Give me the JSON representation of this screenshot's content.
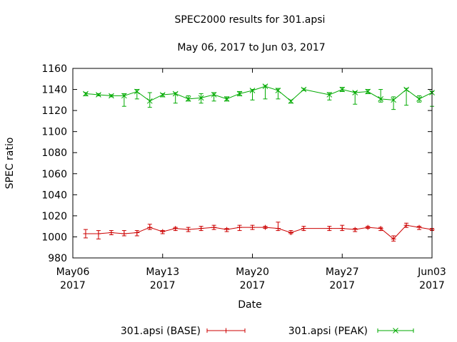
{
  "chart_data": {
    "type": "line",
    "title": "SPEC2000 results for 301.apsi",
    "subtitle": "May 06, 2017 to Jun 03, 2017",
    "xlabel": "Date",
    "ylabel": "SPEC ratio",
    "xlim": [
      "2017-05-06",
      "2017-06-03"
    ],
    "ylim": [
      980,
      1160
    ],
    "yticks": [
      980,
      1000,
      1020,
      1040,
      1060,
      1080,
      1100,
      1120,
      1140,
      1160
    ],
    "xticks": [
      {
        "date": "2017-05-06",
        "line1": "May06",
        "line2": "2017"
      },
      {
        "date": "2017-05-13",
        "line1": "May13",
        "line2": "2017"
      },
      {
        "date": "2017-05-20",
        "line1": "May20",
        "line2": "2017"
      },
      {
        "date": "2017-05-27",
        "line1": "May27",
        "line2": "2017"
      },
      {
        "date": "2017-06-03",
        "line1": "Jun03",
        "line2": "2017"
      }
    ],
    "grid": false,
    "legend": "bottom",
    "series": [
      {
        "name": "301.apsi (BASE)",
        "color": "#cc0000",
        "marker": "plus",
        "points": [
          {
            "x": "2017-05-07 00:00",
            "y": 1003,
            "lo": 999,
            "hi": 1007
          },
          {
            "x": "2017-05-08 00:00",
            "y": 1003,
            "lo": 998,
            "hi": 1006
          },
          {
            "x": "2017-05-09 00:00",
            "y": 1004,
            "lo": 1002,
            "hi": 1006
          },
          {
            "x": "2017-05-10 00:00",
            "y": 1003,
            "lo": 1001,
            "hi": 1006
          },
          {
            "x": "2017-05-11 00:00",
            "y": 1004,
            "lo": 1001,
            "hi": 1006
          },
          {
            "x": "2017-05-12 00:00",
            "y": 1009,
            "lo": 1007,
            "hi": 1012
          },
          {
            "x": "2017-05-13 00:00",
            "y": 1005,
            "lo": 1003,
            "hi": 1006
          },
          {
            "x": "2017-05-14 00:00",
            "y": 1008,
            "lo": 1006,
            "hi": 1009
          },
          {
            "x": "2017-05-15 00:00",
            "y": 1007,
            "lo": 1005,
            "hi": 1009
          },
          {
            "x": "2017-05-16 00:00",
            "y": 1008,
            "lo": 1006,
            "hi": 1010
          },
          {
            "x": "2017-05-17 00:00",
            "y": 1009,
            "lo": 1007,
            "hi": 1011
          },
          {
            "x": "2017-05-18 00:00",
            "y": 1007,
            "lo": 1005,
            "hi": 1008
          },
          {
            "x": "2017-05-19 00:00",
            "y": 1009,
            "lo": 1006,
            "hi": 1011
          },
          {
            "x": "2017-05-20 00:00",
            "y": 1009,
            "lo": 1007,
            "hi": 1011
          },
          {
            "x": "2017-05-21 00:00",
            "y": 1009,
            "lo": 1008,
            "hi": 1010
          },
          {
            "x": "2017-05-22 00:00",
            "y": 1008,
            "lo": 1006,
            "hi": 1014
          },
          {
            "x": "2017-05-23 00:00",
            "y": 1004,
            "lo": 1003,
            "hi": 1006
          },
          {
            "x": "2017-05-24 00:00",
            "y": 1008,
            "lo": 1006,
            "hi": 1010
          },
          {
            "x": "2017-05-26 00:00",
            "y": 1008,
            "lo": 1006,
            "hi": 1010
          },
          {
            "x": "2017-05-27 00:00",
            "y": 1008,
            "lo": 1006,
            "hi": 1011
          },
          {
            "x": "2017-05-28 00:00",
            "y": 1007,
            "lo": 1005,
            "hi": 1008
          },
          {
            "x": "2017-05-29 00:00",
            "y": 1009,
            "lo": 1008,
            "hi": 1010
          },
          {
            "x": "2017-05-30 00:00",
            "y": 1008,
            "lo": 1006,
            "hi": 1009
          },
          {
            "x": "2017-05-31 00:00",
            "y": 998,
            "lo": 996,
            "hi": 1001
          },
          {
            "x": "2017-06-01 00:00",
            "y": 1011,
            "lo": 1009,
            "hi": 1013
          },
          {
            "x": "2017-06-02 00:00",
            "y": 1009,
            "lo": 1007,
            "hi": 1010
          },
          {
            "x": "2017-06-03 00:00",
            "y": 1007,
            "lo": 1006,
            "hi": 1008
          }
        ]
      },
      {
        "name": "301.apsi (PEAK)",
        "color": "#00aa00",
        "marker": "cross",
        "points": [
          {
            "x": "2017-05-07 00:00",
            "y": 1136,
            "lo": 1134,
            "hi": 1137
          },
          {
            "x": "2017-05-08 00:00",
            "y": 1135,
            "lo": 1134,
            "hi": 1136
          },
          {
            "x": "2017-05-09 00:00",
            "y": 1134,
            "lo": 1133,
            "hi": 1135
          },
          {
            "x": "2017-05-10 00:00",
            "y": 1134,
            "lo": 1124,
            "hi": 1136
          },
          {
            "x": "2017-05-11 00:00",
            "y": 1138,
            "lo": 1131,
            "hi": 1140
          },
          {
            "x": "2017-05-12 00:00",
            "y": 1129,
            "lo": 1123,
            "hi": 1137
          },
          {
            "x": "2017-05-13 00:00",
            "y": 1135,
            "lo": 1133,
            "hi": 1136
          },
          {
            "x": "2017-05-14 00:00",
            "y": 1136,
            "lo": 1127,
            "hi": 1137
          },
          {
            "x": "2017-05-15 00:00",
            "y": 1131,
            "lo": 1129,
            "hi": 1134
          },
          {
            "x": "2017-05-16 00:00",
            "y": 1132,
            "lo": 1127,
            "hi": 1136
          },
          {
            "x": "2017-05-17 00:00",
            "y": 1135,
            "lo": 1129,
            "hi": 1137
          },
          {
            "x": "2017-05-18 00:00",
            "y": 1131,
            "lo": 1129,
            "hi": 1133
          },
          {
            "x": "2017-05-19 00:00",
            "y": 1136,
            "lo": 1134,
            "hi": 1138
          },
          {
            "x": "2017-05-20 00:00",
            "y": 1139,
            "lo": 1130,
            "hi": 1140
          },
          {
            "x": "2017-05-21 00:00",
            "y": 1143,
            "lo": 1131,
            "hi": 1144
          },
          {
            "x": "2017-05-22 00:00",
            "y": 1139,
            "lo": 1131,
            "hi": 1141
          },
          {
            "x": "2017-05-23 00:00",
            "y": 1129,
            "lo": 1127,
            "hi": 1130
          },
          {
            "x": "2017-05-24 00:00",
            "y": 1140,
            "lo": 1139,
            "hi": 1141
          },
          {
            "x": "2017-05-26 00:00",
            "y": 1135,
            "lo": 1130,
            "hi": 1137
          },
          {
            "x": "2017-05-27 00:00",
            "y": 1140,
            "lo": 1138,
            "hi": 1142
          },
          {
            "x": "2017-05-28 00:00",
            "y": 1137,
            "lo": 1126,
            "hi": 1138
          },
          {
            "x": "2017-05-29 00:00",
            "y": 1138,
            "lo": 1136,
            "hi": 1140
          },
          {
            "x": "2017-05-30 00:00",
            "y": 1131,
            "lo": 1128,
            "hi": 1140
          },
          {
            "x": "2017-05-31 00:00",
            "y": 1130,
            "lo": 1121,
            "hi": 1133
          },
          {
            "x": "2017-06-01 00:00",
            "y": 1140,
            "lo": 1125,
            "hi": 1141
          },
          {
            "x": "2017-06-02 00:00",
            "y": 1131,
            "lo": 1128,
            "hi": 1134
          },
          {
            "x": "2017-06-03 00:00",
            "y": 1137,
            "lo": 1124,
            "hi": 1138
          }
        ]
      }
    ]
  }
}
